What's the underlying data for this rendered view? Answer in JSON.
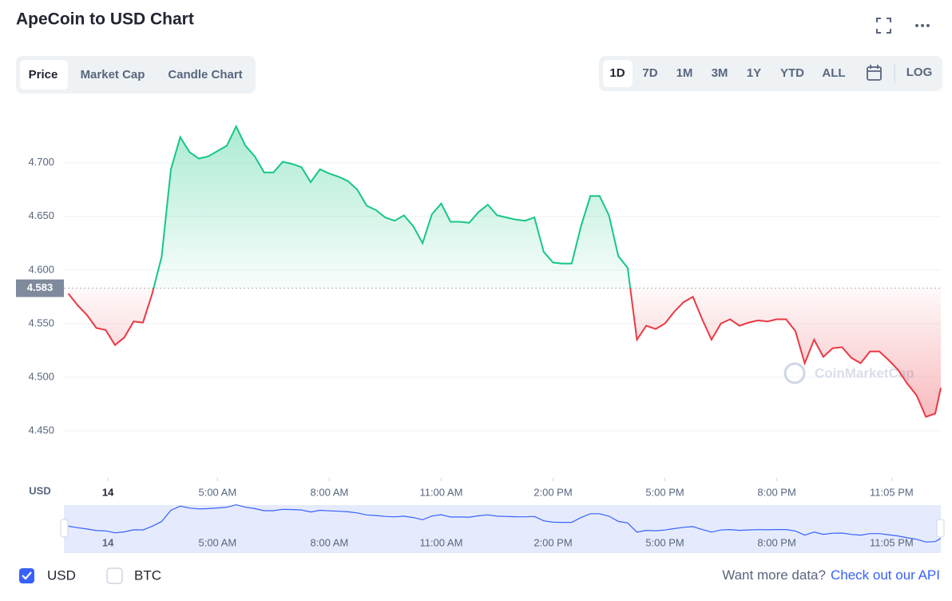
{
  "header": {
    "title": "ApeCoin to USD Chart"
  },
  "tabs": [
    "Price",
    "Market Cap",
    "Candle Chart"
  ],
  "ranges": [
    "1D",
    "7D",
    "1M",
    "3M",
    "1Y",
    "YTD",
    "ALL"
  ],
  "log_button": "LOG",
  "chart_data": {
    "type": "line",
    "y_label": "USD",
    "watermark": "CoinMarketCap",
    "x": [
      1.0,
      1.25,
      1.5,
      1.75,
      2.0,
      2.25,
      2.5,
      2.75,
      3.0,
      3.25,
      3.5,
      3.75,
      4.0,
      4.25,
      4.5,
      4.75,
      5.0,
      5.25,
      5.5,
      5.75,
      6.0,
      6.25,
      6.5,
      6.75,
      7.0,
      7.25,
      7.5,
      7.75,
      8.0,
      8.25,
      8.5,
      8.75,
      9.0,
      9.25,
      9.5,
      9.75,
      10.0,
      10.25,
      10.5,
      10.75,
      11.0,
      11.25,
      11.5,
      11.75,
      12.0,
      12.25,
      12.5,
      12.75,
      13.0,
      13.25,
      13.5,
      13.75,
      14.0,
      14.25,
      14.5,
      14.75,
      15.0,
      15.25,
      15.5,
      15.75,
      16.0,
      16.25,
      16.5,
      16.75,
      17.0,
      17.25,
      17.5,
      17.75,
      18.0,
      18.25,
      18.5,
      18.75,
      19.0,
      19.25,
      19.5,
      19.75,
      20.0,
      20.25,
      20.5,
      20.75,
      21.0,
      21.25,
      21.5,
      21.75,
      22.0,
      22.25,
      22.5,
      22.75,
      23.0,
      23.25,
      23.5,
      23.75,
      24.0,
      24.25,
      24.4
    ],
    "series": [
      {
        "name": "USD",
        "values": [
          4.578,
          4.567,
          4.558,
          4.546,
          4.544,
          4.53,
          4.537,
          4.552,
          4.551,
          4.578,
          4.612,
          4.694,
          4.724,
          4.71,
          4.704,
          4.706,
          4.711,
          4.716,
          4.734,
          4.716,
          4.706,
          4.691,
          4.691,
          4.701,
          4.699,
          4.696,
          4.682,
          4.694,
          4.69,
          4.687,
          4.683,
          4.675,
          4.66,
          4.656,
          4.649,
          4.646,
          4.651,
          4.641,
          4.625,
          4.652,
          4.662,
          4.645,
          4.645,
          4.644,
          4.654,
          4.661,
          4.651,
          4.649,
          4.647,
          4.646,
          4.649,
          4.617,
          4.607,
          4.606,
          4.606,
          4.641,
          4.669,
          4.669,
          4.651,
          4.613,
          4.602,
          4.535,
          4.548,
          4.545,
          4.55,
          4.561,
          4.57,
          4.575,
          4.554,
          4.535,
          4.55,
          4.554,
          4.548,
          4.551,
          4.553,
          4.552,
          4.554,
          4.554,
          4.543,
          4.513,
          4.535,
          4.519,
          4.527,
          4.528,
          4.518,
          4.513,
          4.524,
          4.524,
          4.516,
          4.507,
          4.494,
          4.483,
          4.463,
          4.466,
          4.49
        ]
      }
    ],
    "up_color": "#16c784",
    "down_color": "#ea3943",
    "nav_color": "#3861fb",
    "baseline": {
      "value": 4.583,
      "label": "4.583"
    },
    "xlim": [
      0.88,
      24.4
    ],
    "xticks": [
      {
        "value": 2.06,
        "label": "14"
      },
      {
        "value": 5,
        "label": "5:00 AM"
      },
      {
        "value": 8,
        "label": "8:00 AM"
      },
      {
        "value": 11,
        "label": "11:00 AM"
      },
      {
        "value": 14,
        "label": "2:00 PM"
      },
      {
        "value": 17,
        "label": "5:00 PM"
      },
      {
        "value": 20,
        "label": "8:00 PM"
      },
      {
        "value": 23.08,
        "label": "11:05 PM"
      }
    ],
    "ylim": [
      4.406,
      4.755
    ],
    "yticks": [
      {
        "value": 4.45,
        "label": "4.450"
      },
      {
        "value": 4.5,
        "label": "4.500"
      },
      {
        "value": 4.55,
        "label": "4.550"
      },
      {
        "value": 4.6,
        "label": "4.600"
      },
      {
        "value": 4.65,
        "label": "4.650"
      },
      {
        "value": 4.7,
        "label": "4.700"
      }
    ],
    "grid": true
  },
  "currencies": [
    {
      "label": "USD",
      "checked": true
    },
    {
      "label": "BTC",
      "checked": false
    }
  ],
  "footer": {
    "text": "Want more data?",
    "link": "Check out our API"
  }
}
